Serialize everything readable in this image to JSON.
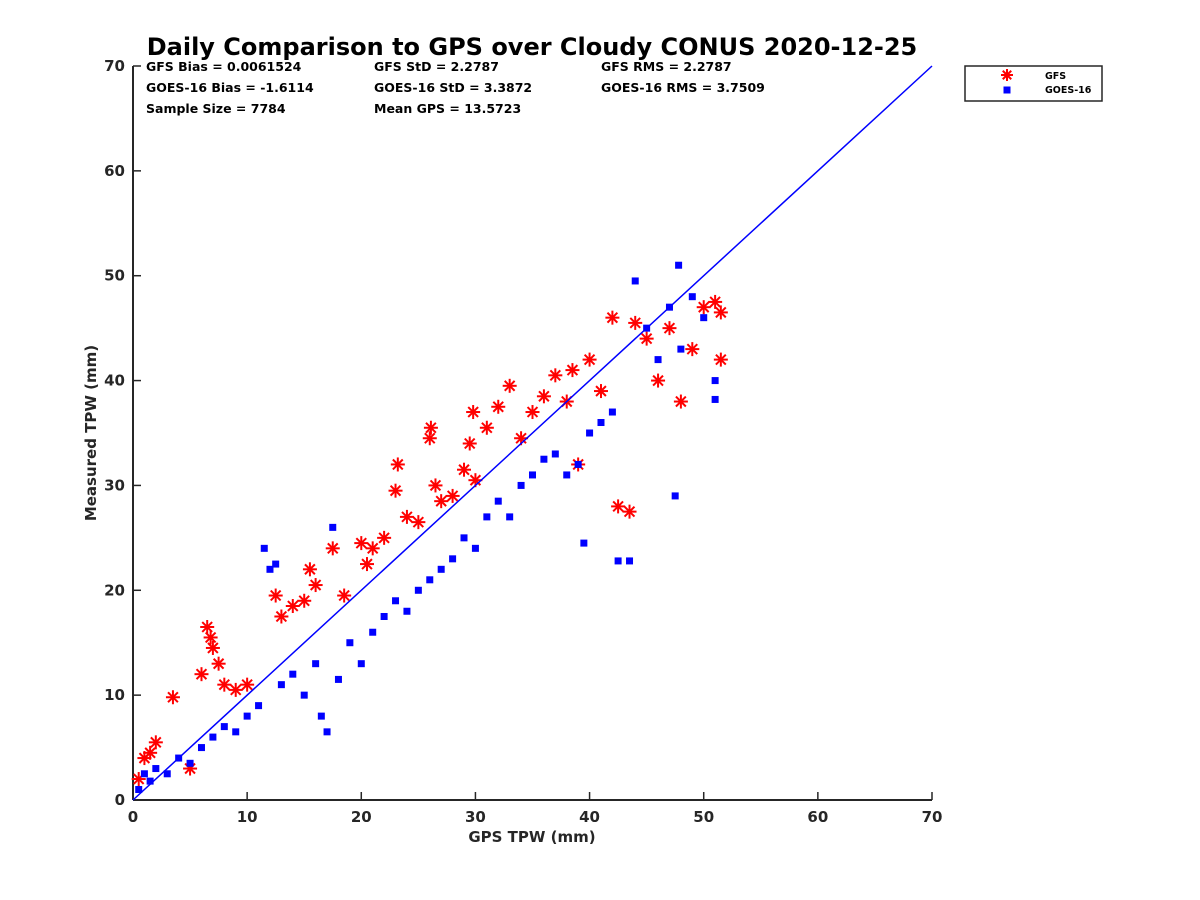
{
  "chart_data": {
    "type": "scatter",
    "title": "Daily Comparison to GPS over Cloudy CONUS 2020-12-25",
    "xlabel": "GPS TPW (mm)",
    "ylabel": "Measured TPW (mm)",
    "xlim": [
      0,
      70
    ],
    "ylim": [
      0,
      70
    ],
    "xticks": [
      "0",
      "10",
      "20",
      "30",
      "40",
      "50",
      "60",
      "70"
    ],
    "yticks": [
      "0",
      "10",
      "20",
      "30",
      "40",
      "50",
      "60",
      "70"
    ],
    "grid": false,
    "legend_position": "outside-top-right",
    "stats": [
      [
        "GFS Bias = 0.0061524",
        "GFS StD = 2.2787",
        "GFS RMS = 2.2787"
      ],
      [
        "GOES-16 Bias = -1.6114",
        "GOES-16 StD = 3.3872",
        "GOES-16 RMS = 3.7509"
      ],
      [
        "Sample Size = 7784",
        "Mean GPS = 13.5723"
      ]
    ],
    "reference_line": {
      "label": "1:1",
      "x": [
        0,
        70
      ],
      "y": [
        0,
        70
      ],
      "color": "#0000ff"
    },
    "series": [
      {
        "name": "GFS",
        "marker": "asterisk",
        "color": "#ff0000",
        "points": [
          [
            0.5,
            2.0
          ],
          [
            1.0,
            4.0
          ],
          [
            1.5,
            4.5
          ],
          [
            2.0,
            5.5
          ],
          [
            3.5,
            9.8
          ],
          [
            5.0,
            3.0
          ],
          [
            6.0,
            12.0
          ],
          [
            6.5,
            16.5
          ],
          [
            6.8,
            15.5
          ],
          [
            7.0,
            14.5
          ],
          [
            7.5,
            13.0
          ],
          [
            8.0,
            11.0
          ],
          [
            9.0,
            10.5
          ],
          [
            10.0,
            11.0
          ],
          [
            12.5,
            19.5
          ],
          [
            13.0,
            17.5
          ],
          [
            14.0,
            18.5
          ],
          [
            15.0,
            19.0
          ],
          [
            15.5,
            22.0
          ],
          [
            16.0,
            20.5
          ],
          [
            17.5,
            24.0
          ],
          [
            18.5,
            19.5
          ],
          [
            20.0,
            24.5
          ],
          [
            20.5,
            22.5
          ],
          [
            21.0,
            24.0
          ],
          [
            22.0,
            25.0
          ],
          [
            23.0,
            29.5
          ],
          [
            23.2,
            32.0
          ],
          [
            24.0,
            27.0
          ],
          [
            25.0,
            26.5
          ],
          [
            26.0,
            34.5
          ],
          [
            26.1,
            35.5
          ],
          [
            26.5,
            30.0
          ],
          [
            27.0,
            28.5
          ],
          [
            28.0,
            29.0
          ],
          [
            29.0,
            31.5
          ],
          [
            29.5,
            34.0
          ],
          [
            29.8,
            37.0
          ],
          [
            30.0,
            30.5
          ],
          [
            31.0,
            35.5
          ],
          [
            32.0,
            37.5
          ],
          [
            33.0,
            39.5
          ],
          [
            34.0,
            34.5
          ],
          [
            35.0,
            37.0
          ],
          [
            36.0,
            38.5
          ],
          [
            37.0,
            40.5
          ],
          [
            38.0,
            38.0
          ],
          [
            38.5,
            41.0
          ],
          [
            39.0,
            32.0
          ],
          [
            40.0,
            42.0
          ],
          [
            41.0,
            39.0
          ],
          [
            42.0,
            46.0
          ],
          [
            42.5,
            28.0
          ],
          [
            43.5,
            27.5
          ],
          [
            44.0,
            45.5
          ],
          [
            45.0,
            44.0
          ],
          [
            46.0,
            40.0
          ],
          [
            47.0,
            45.0
          ],
          [
            48.0,
            38.0
          ],
          [
            49.0,
            43.0
          ],
          [
            50.0,
            47.0
          ],
          [
            51.0,
            47.5
          ],
          [
            51.5,
            46.5
          ],
          [
            51.5,
            42.0
          ]
        ]
      },
      {
        "name": "GOES-16",
        "marker": "square",
        "color": "#0000ff",
        "points": [
          [
            0.5,
            1.0
          ],
          [
            1.0,
            2.5
          ],
          [
            1.5,
            1.8
          ],
          [
            2.0,
            3.0
          ],
          [
            3.0,
            2.5
          ],
          [
            4.0,
            4.0
          ],
          [
            5.0,
            3.5
          ],
          [
            6.0,
            5.0
          ],
          [
            7.0,
            6.0
          ],
          [
            8.0,
            7.0
          ],
          [
            9.0,
            6.5
          ],
          [
            10.0,
            8.0
          ],
          [
            11.0,
            9.0
          ],
          [
            11.5,
            24.0
          ],
          [
            12.0,
            22.0
          ],
          [
            12.5,
            22.5
          ],
          [
            13.0,
            11.0
          ],
          [
            14.0,
            12.0
          ],
          [
            15.0,
            10.0
          ],
          [
            16.0,
            13.0
          ],
          [
            16.5,
            8.0
          ],
          [
            17.0,
            6.5
          ],
          [
            17.5,
            26.0
          ],
          [
            18.0,
            11.5
          ],
          [
            19.0,
            15.0
          ],
          [
            20.0,
            13.0
          ],
          [
            21.0,
            16.0
          ],
          [
            22.0,
            17.5
          ],
          [
            23.0,
            19.0
          ],
          [
            24.0,
            18.0
          ],
          [
            25.0,
            20.0
          ],
          [
            26.0,
            21.0
          ],
          [
            27.0,
            22.0
          ],
          [
            28.0,
            23.0
          ],
          [
            29.0,
            25.0
          ],
          [
            30.0,
            24.0
          ],
          [
            31.0,
            27.0
          ],
          [
            32.0,
            28.5
          ],
          [
            33.0,
            27.0
          ],
          [
            34.0,
            30.0
          ],
          [
            35.0,
            31.0
          ],
          [
            36.0,
            32.5
          ],
          [
            37.0,
            33.0
          ],
          [
            38.0,
            31.0
          ],
          [
            39.0,
            32.0
          ],
          [
            39.5,
            24.5
          ],
          [
            40.0,
            35.0
          ],
          [
            41.0,
            36.0
          ],
          [
            42.0,
            37.0
          ],
          [
            42.5,
            22.8
          ],
          [
            43.5,
            22.8
          ],
          [
            44.0,
            49.5
          ],
          [
            45.0,
            45.0
          ],
          [
            46.0,
            42.0
          ],
          [
            47.0,
            47.0
          ],
          [
            47.5,
            29.0
          ],
          [
            48.0,
            43.0
          ],
          [
            49.0,
            48.0
          ],
          [
            50.0,
            46.0
          ],
          [
            51.0,
            40.0
          ],
          [
            51.0,
            38.2
          ],
          [
            47.8,
            51.0
          ]
        ]
      }
    ]
  }
}
